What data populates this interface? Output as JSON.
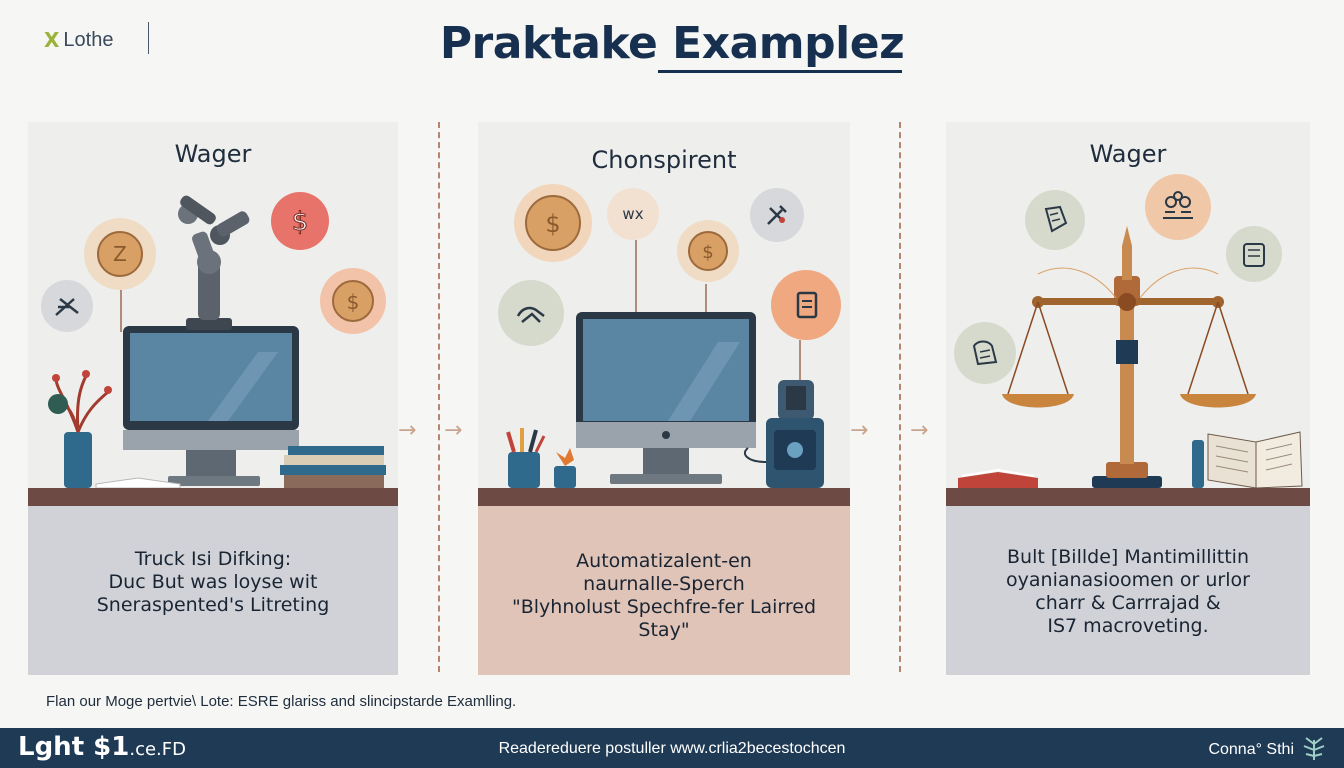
{
  "brand": {
    "mark": "X",
    "name": "Lothe"
  },
  "title": "Praktake Examplez",
  "panels": [
    {
      "heading": "Wager",
      "caption": [
        "Truck Isi Difking:",
        "Duc But was loyse wit",
        "Sneraspented's Litreting"
      ]
    },
    {
      "heading": "Chonspirent",
      "bubble_text": "wx",
      "caption": [
        "Automatizalent-en",
        "naurnalle-Sperch",
        "\"Blyhnolust Spechfre-fer Lairred",
        "Stay\""
      ]
    },
    {
      "heading": "Wager",
      "caption": [
        "Bult [Billde] Mantimillittin",
        "oyanianasioomen or urlor",
        "charr & Carrrajad &",
        "IS7 macroveting."
      ]
    }
  ],
  "footer_note": "Flan our Moge pertvie\\ Lote: ESRE glariss and slincipstarde Examlling.",
  "bottom_bar": {
    "left_main": "Lght $1",
    "left_suffix": ".ce.FD",
    "center": "Readereduere postuller www.crlia2becestochcen",
    "right": "Conna° Sthi"
  },
  "colors": {
    "navy": "#17304f",
    "bar": "#1f3a55",
    "accent_green": "#9bb33a",
    "desk": "#6e4a44",
    "panel_gray": "#d0d2d8",
    "panel_peach": "#e0c4b8",
    "coin": "#d9a066"
  }
}
